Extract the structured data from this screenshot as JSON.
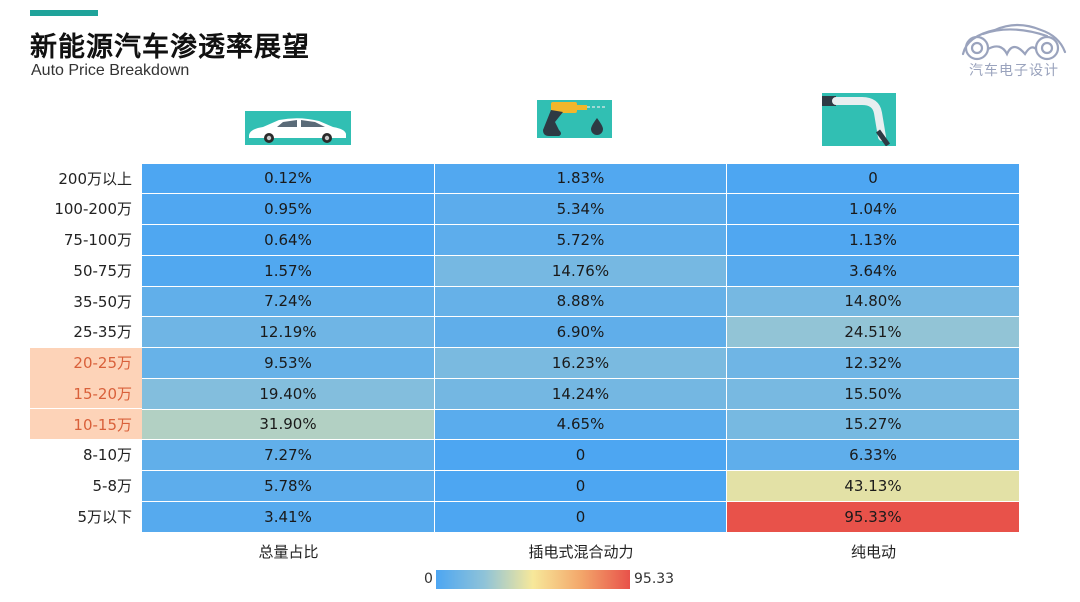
{
  "header": {
    "title": "新能源汽车渗透率展望",
    "subtitle": "Auto Price Breakdown"
  },
  "brand": {
    "logo_text": "汽车电子设计"
  },
  "colors": {
    "accent": "#1fa39a",
    "highlight_bg": "#fdd3b8",
    "highlight_text": "#d9603a",
    "scale": [
      "#4da6f2",
      "#8fc3d8",
      "#f7e89a",
      "#f3a66a",
      "#e8524a"
    ]
  },
  "chart_data": {
    "type": "heatmap",
    "title": "新能源汽车渗透率展望",
    "subtitle": "Auto Price Breakdown",
    "columns": [
      "总量占比",
      "插电式混合动力",
      "纯电动"
    ],
    "column_icons": [
      "car-icon",
      "fuel-pump-icon",
      "charger-plug-icon"
    ],
    "rows": [
      "200万以上",
      "100-200万",
      "75-100万",
      "50-75万",
      "35-50万",
      "25-35万",
      "20-25万",
      "15-20万",
      "10-15万",
      "8-10万",
      "5-8万",
      "5万以下"
    ],
    "highlighted_rows": [
      "20-25万",
      "15-20万",
      "10-15万"
    ],
    "values": [
      [
        0.12,
        1.83,
        0
      ],
      [
        0.95,
        5.34,
        1.04
      ],
      [
        0.64,
        5.72,
        1.13
      ],
      [
        1.57,
        14.76,
        3.64
      ],
      [
        7.24,
        8.88,
        14.8
      ],
      [
        12.19,
        6.9,
        24.51
      ],
      [
        9.53,
        16.23,
        12.32
      ],
      [
        19.4,
        14.24,
        15.5
      ],
      [
        31.9,
        4.65,
        15.27
      ],
      [
        7.27,
        0,
        6.33
      ],
      [
        5.78,
        0,
        43.13
      ],
      [
        3.41,
        0,
        95.33
      ]
    ],
    "labels": [
      [
        "0.12%",
        "1.83%",
        "0"
      ],
      [
        "0.95%",
        "5.34%",
        "1.04%"
      ],
      [
        "0.64%",
        "5.72%",
        "1.13%"
      ],
      [
        "1.57%",
        "14.76%",
        "3.64%"
      ],
      [
        "7.24%",
        "8.88%",
        "14.80%"
      ],
      [
        "12.19%",
        "6.90%",
        "24.51%"
      ],
      [
        "9.53%",
        "16.23%",
        "12.32%"
      ],
      [
        "19.40%",
        "14.24%",
        "15.50%"
      ],
      [
        "31.90%",
        "4.65%",
        "15.27%"
      ],
      [
        "7.27%",
        "0",
        "6.33%"
      ],
      [
        "5.78%",
        "0",
        "43.13%"
      ],
      [
        "3.41%",
        "0",
        "95.33%"
      ]
    ],
    "color_scale": {
      "min": 0,
      "max": 95.33,
      "min_label": "0",
      "max_label": "95.33"
    }
  }
}
